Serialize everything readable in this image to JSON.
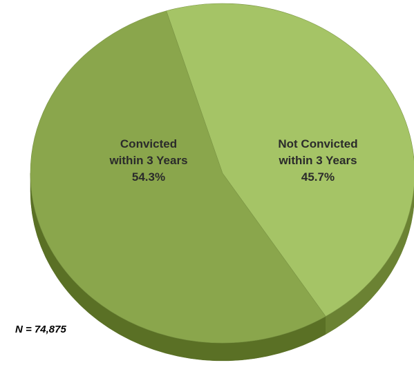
{
  "chart_data": {
    "type": "pie",
    "categories": [
      "Convicted within 3 Years",
      "Not Convicted within 3 Years"
    ],
    "values": [
      54.3,
      45.7
    ],
    "data_labels": [
      [
        "Convicted",
        "within 3 Years",
        "54.3%"
      ],
      [
        "Not Convicted",
        "within 3 Years",
        "45.7%"
      ]
    ],
    "note": "N = 74,875",
    "style": "3d",
    "legend": "none",
    "colors": {
      "convicted": "#8aa64c",
      "not_convicted": "#a5c466",
      "convicted_side": "#5a7025",
      "not_convicted_side": "#6b8233"
    }
  }
}
